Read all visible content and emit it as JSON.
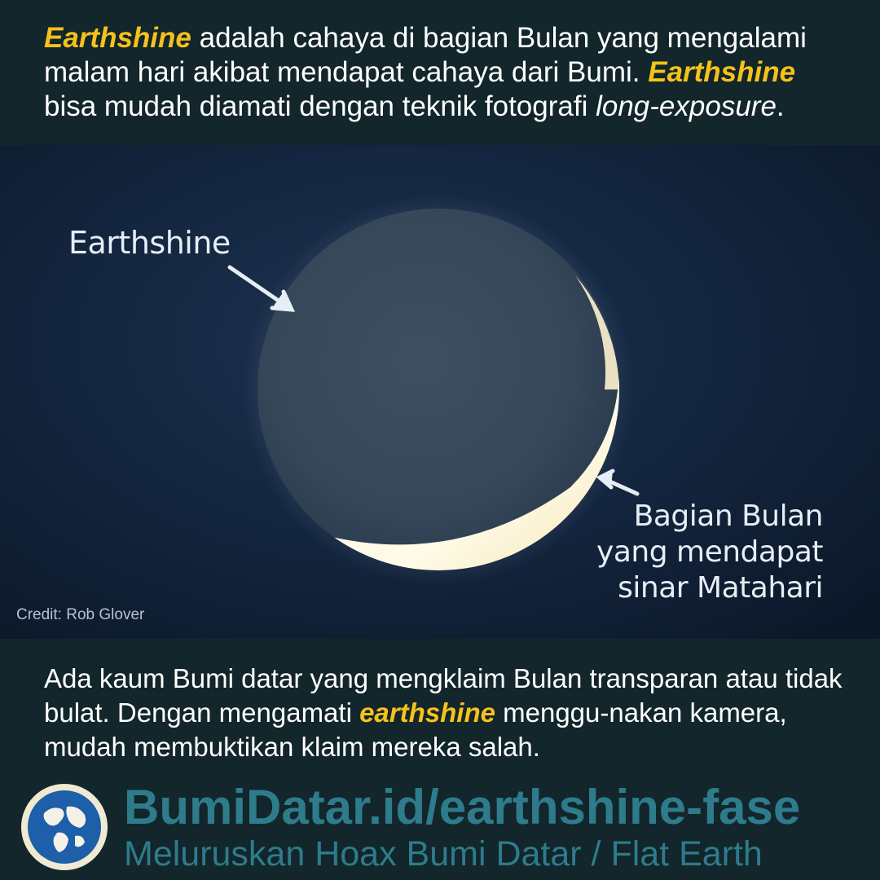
{
  "intro": {
    "term_1": "Earthshine",
    "text_1": " adalah cahaya di bagian Bulan yang mengalami malam hari akibat mendapat cahaya dari Bumi. ",
    "term_2": "Earthshine",
    "text_2": " bisa mudah diamati dengan teknik fotografi ",
    "emphasis": "long-exposure",
    "text_3": "."
  },
  "photo": {
    "label_earthshine": "Earthshine",
    "label_sunlit": [
      "Bagian Bulan",
      "yang mendapat",
      "sinar Matahari"
    ],
    "credit": "Credit: Rob Glover"
  },
  "claim": {
    "text_1": "Ada kaum Bumi datar yang mengklaim Bulan transparan atau tidak bulat. Dengan mengamati ",
    "term": "earthshine",
    "text_2": " menggu-nakan kamera, mudah membuktikan klaim mereka salah."
  },
  "footer": {
    "url": "BumiDatar.id/earthshine-fase",
    "tagline": "Meluruskan Hoax Bumi Datar / Flat Earth"
  },
  "colors": {
    "background": "#12262b",
    "highlight": "#f6c21a",
    "brand": "#2e7b8c"
  },
  "icons": {
    "logo": "globe-logo-icon",
    "arrows": "pointer-arrow-icon"
  }
}
